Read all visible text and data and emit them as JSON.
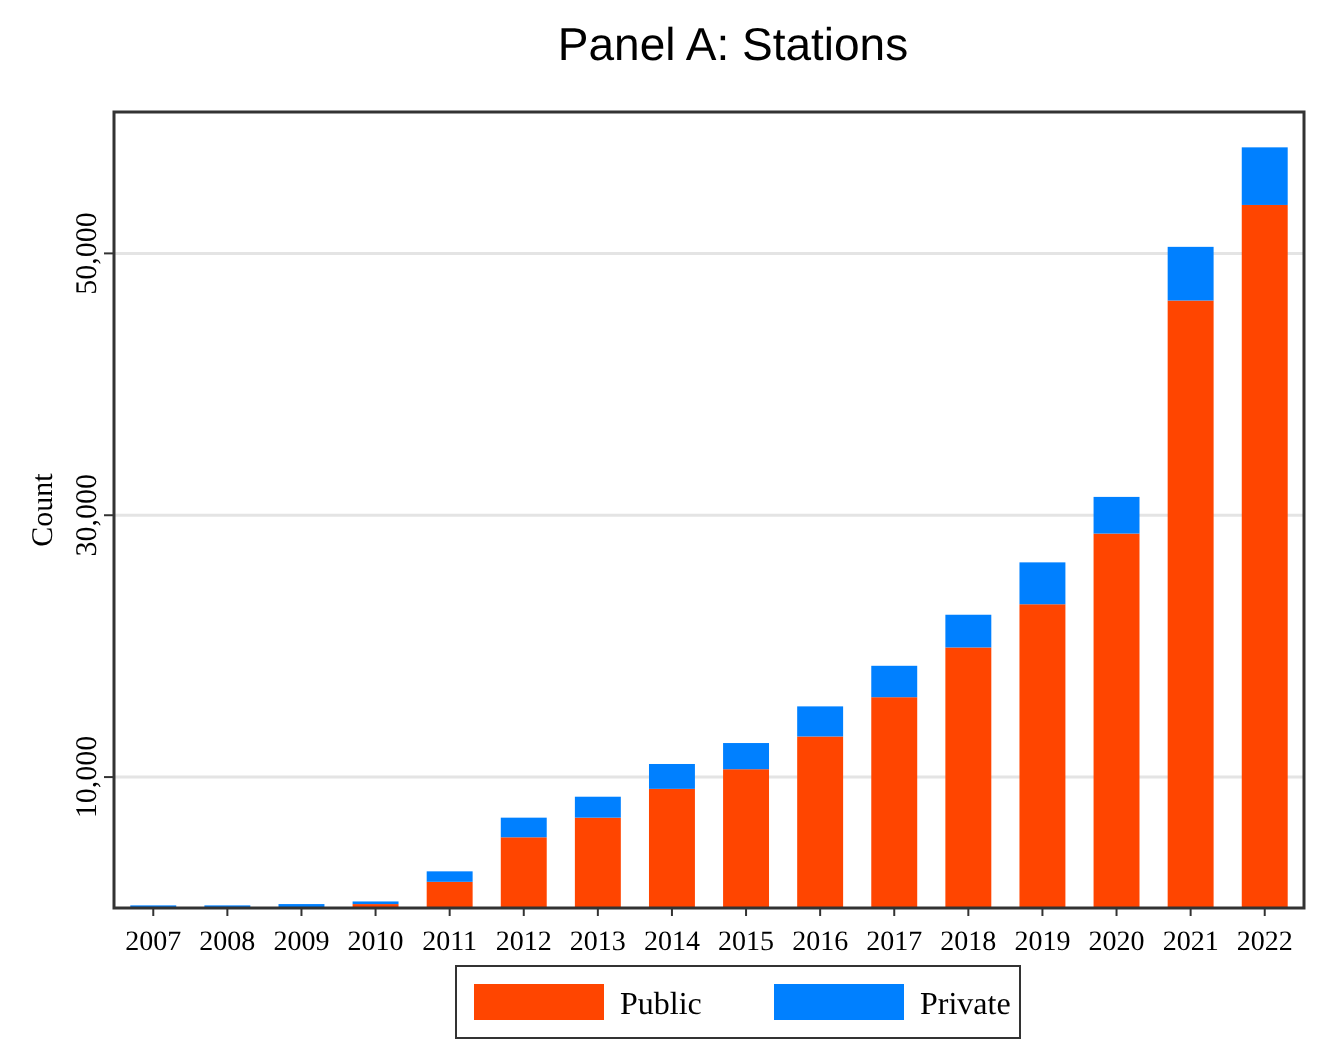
{
  "chart_data": {
    "type": "bar",
    "title": "Panel A: Stations",
    "ylabel": "Count",
    "stacked": true,
    "grid": "y",
    "legend": "bottom",
    "categories": [
      "2007",
      "2008",
      "2009",
      "2010",
      "2011",
      "2012",
      "2013",
      "2014",
      "2015",
      "2016",
      "2017",
      "2018",
      "2019",
      "2020",
      "2021",
      "2022"
    ],
    "series": [
      {
        "name": "Public",
        "color": "#ff4500",
        "values": [
          null,
          null,
          null,
          300,
          2000,
          5400,
          6900,
          9100,
          10600,
          13100,
          16100,
          19900,
          23200,
          28600,
          46400,
          53700
        ]
      },
      {
        "name": "Private",
        "color": "#0080ff",
        "values": [
          200,
          200,
          300,
          200,
          800,
          1500,
          1600,
          1900,
          2000,
          2300,
          2400,
          2500,
          3200,
          2800,
          4100,
          4400
        ]
      }
    ],
    "ylim": [
      0,
      60800
    ],
    "yticks": [
      {
        "value": 10000,
        "label": "10,000"
      },
      {
        "value": 30000,
        "label": "30,000"
      },
      {
        "value": 50000,
        "label": "50,000"
      }
    ]
  }
}
